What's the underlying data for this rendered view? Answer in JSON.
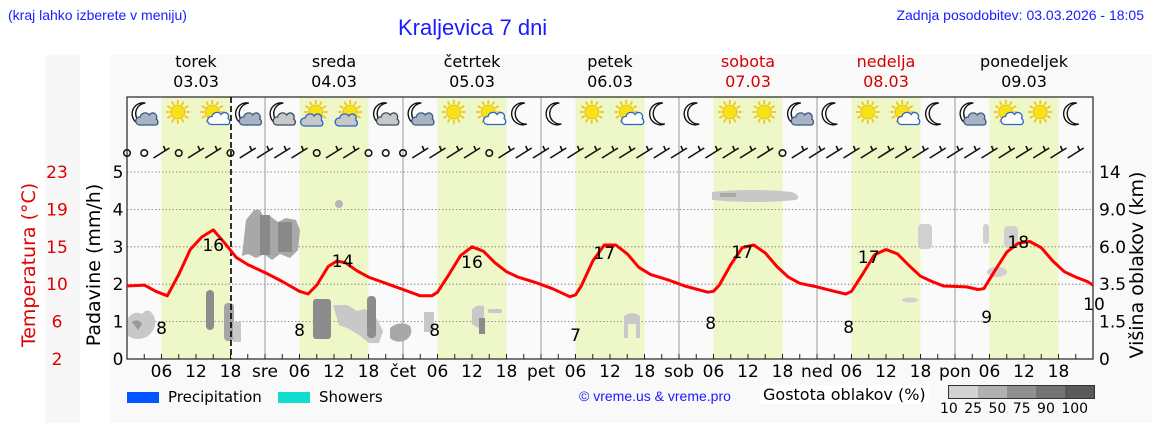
{
  "header": {
    "menu_hint": "(kraj lahko izberete v meniju)",
    "title": "Kraljevica 7 dni",
    "last_update": "Zadnja posodobitev: 03.03.2026 - 18:05"
  },
  "days": [
    {
      "name": "torek",
      "date": "03.03",
      "weekend": false,
      "short": ""
    },
    {
      "name": "sreda",
      "date": "04.03",
      "weekend": false,
      "short": "sre"
    },
    {
      "name": "četrtek",
      "date": "05.03",
      "weekend": false,
      "short": "čet"
    },
    {
      "name": "petek",
      "date": "06.03",
      "weekend": false,
      "short": "pet"
    },
    {
      "name": "sobota",
      "date": "07.03",
      "weekend": true,
      "short": "sob"
    },
    {
      "name": "nedelja",
      "date": "08.03",
      "weekend": true,
      "short": "ned"
    },
    {
      "name": "ponedeljek",
      "date": "09.03",
      "weekend": false,
      "short": "pon"
    }
  ],
  "weather_icons": [
    [
      "moon-cloud",
      "sun",
      "sun-cloud",
      "moon-cloud"
    ],
    [
      "moon-cloud-big",
      "sun-cloud-big",
      "sun-cloud-big",
      "moon-cloud-big"
    ],
    [
      "moon-cloud",
      "sun",
      "sun-cloud",
      "moon"
    ],
    [
      "moon",
      "sun",
      "sun-cloud",
      "moon"
    ],
    [
      "moon",
      "sun",
      "sun",
      "moon-cloud"
    ],
    [
      "moon",
      "sun",
      "sun-cloud",
      "moon"
    ],
    [
      "moon-cloud",
      "sun-cloud",
      "sun",
      "moon"
    ]
  ],
  "axes": {
    "left_temp_label": "Temperatura (°C)",
    "left_temp_ticks": [
      "23",
      "19",
      "15",
      "10",
      "6",
      "2"
    ],
    "left_precip_label": "Padavine (mm/h)",
    "left_precip_ticks": [
      "5",
      "4",
      "3",
      "2",
      "1",
      "0"
    ],
    "right_label": "Višina oblakov (km)",
    "right_ticks": [
      "14",
      "9.0",
      "6.0",
      "3.5",
      "1.5",
      "0"
    ],
    "hour_ticks": [
      "06",
      "12",
      "18"
    ]
  },
  "legend": {
    "precipitation": "Precipitation",
    "showers": "Showers",
    "precipitation_color": "#0055ff",
    "showers_color": "#11ddcc",
    "credit": "© vreme.us & vreme.pro",
    "cloud_density_label": "Gostota oblakov (%)",
    "cloud_density_ticks": "10 25 50 75 90 100",
    "cloud_density_colors": [
      "#d3d3d3",
      "#b0b0b0",
      "#909090",
      "#747474",
      "#5a5a5a"
    ]
  },
  "colors": {
    "temperature": "#ff0000",
    "daylight": "#eef7c8",
    "grid": "#888888"
  },
  "chart_data": {
    "type": "line",
    "title": "Kraljevica 7 dni",
    "xlabel": "",
    "ylabel": "Temperatura (°C) / Padavine (mm/h)",
    "y2label": "Višina oblakov (km)",
    "ylim_temp": [
      2,
      23
    ],
    "ylim_precip": [
      0,
      5
    ],
    "now_marker": "03.03 18:00",
    "categories": [
      "torek 03.03",
      "sreda 04.03",
      "četrtek 05.03",
      "petek 06.03",
      "sobota 07.03",
      "nedelja 08.03",
      "ponedeljek 09.03"
    ],
    "daily_min_labels": [
      8,
      8,
      8,
      7,
      8,
      8,
      9
    ],
    "daily_max_labels": [
      16,
      14,
      16,
      17,
      17,
      17,
      18
    ],
    "end_label": 10,
    "series": [
      {
        "name": "Temperatura",
        "hours_temp": [
          [
            0,
            10.2
          ],
          [
            3,
            10.3
          ],
          [
            5,
            9.6
          ],
          [
            7,
            9.1
          ],
          [
            9,
            11.5
          ],
          [
            11,
            14.3
          ],
          [
            13,
            15.7
          ],
          [
            15,
            16.5
          ],
          [
            17,
            15.0
          ],
          [
            19,
            13.4
          ],
          [
            21,
            12.6
          ],
          [
            24,
            11.7
          ],
          [
            27,
            10.7
          ],
          [
            30,
            9.6
          ],
          [
            31.5,
            9.3
          ],
          [
            33,
            10.3
          ],
          [
            35,
            12.4
          ],
          [
            36.5,
            13.0
          ],
          [
            38,
            12.8
          ],
          [
            40,
            11.9
          ],
          [
            42,
            11.2
          ],
          [
            45,
            10.5
          ],
          [
            48,
            9.8
          ],
          [
            51,
            9.1
          ],
          [
            53,
            9.1
          ],
          [
            54,
            9.5
          ],
          [
            56,
            11.5
          ],
          [
            58,
            13.6
          ],
          [
            60,
            14.6
          ],
          [
            62,
            14.1
          ],
          [
            64,
            12.8
          ],
          [
            66,
            11.8
          ],
          [
            68,
            11.2
          ],
          [
            71,
            10.6
          ],
          [
            74,
            9.9
          ],
          [
            77,
            9.0
          ],
          [
            78,
            9.2
          ],
          [
            79,
            10.2
          ],
          [
            81,
            13.0
          ],
          [
            83,
            14.8
          ],
          [
            85,
            14.8
          ],
          [
            87,
            13.8
          ],
          [
            89,
            12.3
          ],
          [
            91,
            11.5
          ],
          [
            94,
            10.9
          ],
          [
            97,
            10.2
          ],
          [
            101,
            9.5
          ],
          [
            102,
            9.6
          ],
          [
            103,
            10.3
          ],
          [
            105,
            12.6
          ],
          [
            107,
            14.5
          ],
          [
            109,
            14.8
          ],
          [
            111,
            13.9
          ],
          [
            113,
            12.4
          ],
          [
            115,
            11.2
          ],
          [
            117,
            10.5
          ],
          [
            120,
            10.1
          ],
          [
            123,
            9.6
          ],
          [
            125,
            9.3
          ],
          [
            126,
            9.6
          ],
          [
            128,
            11.6
          ],
          [
            130,
            13.7
          ],
          [
            132,
            14.3
          ],
          [
            134,
            13.8
          ],
          [
            136,
            12.5
          ],
          [
            138,
            11.3
          ],
          [
            140,
            10.7
          ],
          [
            142,
            10.2
          ],
          [
            146,
            10.1
          ],
          [
            148,
            9.8
          ],
          [
            149,
            9.9
          ],
          [
            151,
            12.0
          ],
          [
            153,
            14.0
          ],
          [
            155,
            15.0
          ],
          [
            157,
            15.2
          ],
          [
            159,
            14.5
          ],
          [
            161,
            13.0
          ],
          [
            163,
            11.8
          ],
          [
            165,
            11.2
          ],
          [
            167,
            10.7
          ]
        ]
      }
    ],
    "cloud_density_legend": [
      10,
      25,
      50,
      75,
      90,
      100
    ]
  }
}
